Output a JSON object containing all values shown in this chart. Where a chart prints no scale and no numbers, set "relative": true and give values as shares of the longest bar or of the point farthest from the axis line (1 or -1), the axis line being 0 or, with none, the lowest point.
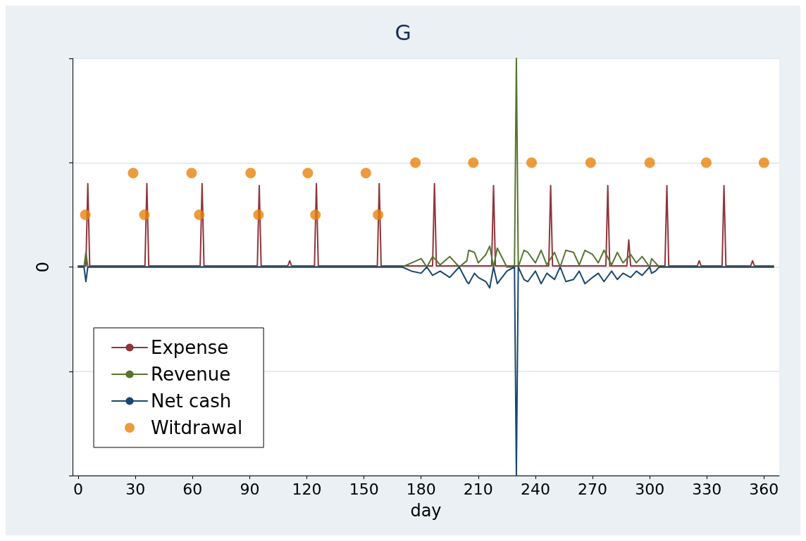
{
  "chart_data": {
    "type": "line",
    "title": "G",
    "xlabel": "day",
    "ylabel": "0",
    "relative": true,
    "xlim": [
      -3,
      368
    ],
    "xticks": [
      0,
      30,
      60,
      90,
      120,
      150,
      180,
      210,
      240,
      270,
      300,
      330,
      360
    ],
    "grid": "y",
    "legend": "bottom left",
    "marker": "none",
    "series": [
      {
        "name": "Expense",
        "color": "#90353b",
        "x": [
          0,
          4,
          5,
          6,
          35,
          36,
          37,
          64,
          65,
          66,
          94,
          95,
          96,
          110,
          111,
          112,
          124,
          125,
          126,
          157,
          158,
          159,
          186,
          187,
          188,
          217,
          218,
          219,
          247,
          248,
          249,
          277,
          278,
          279,
          288,
          289,
          290,
          308,
          309,
          310,
          325,
          326,
          327,
          338,
          339,
          340,
          353,
          354,
          355,
          365
        ],
        "values": [
          0.005,
          0.005,
          0.4,
          0.005,
          0.005,
          0.4,
          0.005,
          0.005,
          0.4,
          0.005,
          0.005,
          0.39,
          0.005,
          0.005,
          0.03,
          0.005,
          0.005,
          0.4,
          0.005,
          0.005,
          0.4,
          0.005,
          0.005,
          0.4,
          0.005,
          0.005,
          0.39,
          0.005,
          0.005,
          0.39,
          0.005,
          0.005,
          0.39,
          0.005,
          0.005,
          0.13,
          0.005,
          0.005,
          0.39,
          0.005,
          0.005,
          0.03,
          0.005,
          0.005,
          0.39,
          0.005,
          0.005,
          0.03,
          0.005,
          0.005
        ]
      },
      {
        "name": "Revenue",
        "color": "#55752f",
        "x": [
          0,
          3,
          4,
          5,
          170,
          175,
          180,
          183,
          186,
          190,
          195,
          200,
          204,
          205,
          208,
          210,
          214,
          216,
          218,
          220,
          225,
          229,
          230,
          231,
          234,
          236,
          240,
          243,
          246,
          250,
          253,
          256,
          260,
          263,
          266,
          270,
          273,
          276,
          280,
          283,
          286,
          290,
          293,
          296,
          300,
          301,
          303,
          305,
          365
        ],
        "values": [
          0,
          0,
          0.07,
          0,
          0,
          0.02,
          0.04,
          0,
          0.05,
          0.01,
          0.05,
          0,
          0.03,
          0.08,
          0.07,
          0.02,
          0.06,
          0.1,
          0,
          0.09,
          0,
          0,
          1,
          0,
          0.08,
          0.07,
          0.02,
          0.08,
          0.01,
          0.07,
          0,
          0.08,
          0.07,
          0.01,
          0.08,
          0.06,
          0.02,
          0.08,
          0.01,
          0.07,
          0.02,
          0.06,
          0.02,
          0.05,
          0,
          0.04,
          0.02,
          0,
          0
        ]
      },
      {
        "name": "Net cash",
        "color": "#1a476f",
        "x": [
          0,
          3,
          4,
          5,
          170,
          175,
          180,
          183,
          186,
          190,
          195,
          200,
          204,
          205,
          208,
          210,
          214,
          216,
          218,
          220,
          225,
          229,
          230,
          231,
          234,
          236,
          240,
          243,
          246,
          250,
          253,
          256,
          260,
          263,
          266,
          270,
          273,
          276,
          280,
          283,
          286,
          290,
          293,
          296,
          300,
          301,
          303,
          305,
          365
        ],
        "values": [
          0,
          0,
          -0.07,
          0,
          0,
          -0.02,
          -0.03,
          0,
          -0.04,
          -0.02,
          -0.05,
          0,
          -0.07,
          -0.08,
          -0.03,
          -0.05,
          -0.07,
          -0.1,
          0,
          -0.08,
          -0.02,
          0,
          -1,
          0,
          -0.06,
          -0.07,
          -0.02,
          -0.08,
          -0.03,
          -0.06,
          0,
          -0.07,
          -0.06,
          -0.02,
          -0.08,
          -0.05,
          -0.03,
          -0.07,
          -0.02,
          -0.06,
          -0.03,
          -0.05,
          -0.02,
          -0.04,
          0,
          -0.03,
          -0.02,
          0,
          0
        ]
      },
      {
        "name": "Witdrawal",
        "type": "scatter",
        "marker": "circle",
        "color": "#e8830c",
        "x": [
          3.7,
          28.8,
          34.7,
          59.5,
          63.5,
          90.5,
          94.6,
          120.5,
          124.5,
          151,
          157.4,
          177,
          207.4,
          238,
          269,
          300,
          329.7,
          360
        ],
        "values": [
          0.25,
          0.45,
          0.25,
          0.45,
          0.25,
          0.45,
          0.25,
          0.45,
          0.25,
          0.45,
          0.25,
          0.5,
          0.5,
          0.5,
          0.5,
          0.5,
          0.5,
          0.5
        ]
      }
    ]
  }
}
